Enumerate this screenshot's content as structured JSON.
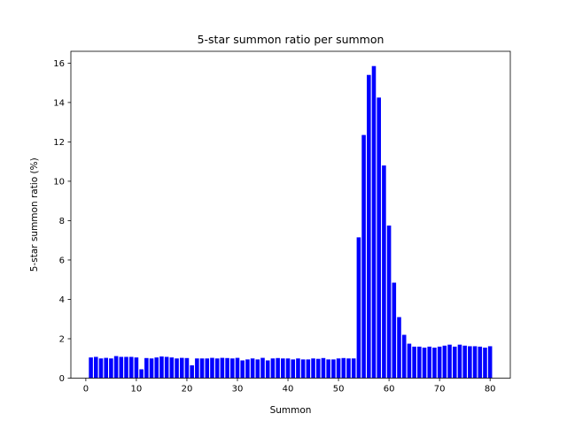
{
  "chart_data": {
    "type": "bar",
    "title": "5-star summon ratio per summon",
    "xlabel": "Summon",
    "ylabel": "5-star summon ratio (%)",
    "xlim": [
      -2.96,
      84.0
    ],
    "ylim": [
      0,
      16.6
    ],
    "xticks": [
      0,
      10,
      20,
      30,
      40,
      50,
      60,
      70,
      80
    ],
    "yticks": [
      0,
      2,
      4,
      6,
      8,
      10,
      12,
      14,
      16
    ],
    "bar_color": "#0000ff",
    "grid": false,
    "x": [
      1,
      2,
      3,
      4,
      5,
      6,
      7,
      8,
      9,
      10,
      11,
      12,
      13,
      14,
      15,
      16,
      17,
      18,
      19,
      20,
      21,
      22,
      23,
      24,
      25,
      26,
      27,
      28,
      29,
      30,
      31,
      32,
      33,
      34,
      35,
      36,
      37,
      38,
      39,
      40,
      41,
      42,
      43,
      44,
      45,
      46,
      47,
      48,
      49,
      50,
      51,
      52,
      53,
      54,
      55,
      56,
      57,
      58,
      59,
      60,
      61,
      62,
      63,
      64,
      65,
      66,
      67,
      68,
      69,
      70,
      71,
      72,
      73,
      74,
      75,
      76,
      77,
      78,
      79,
      80
    ],
    "values": [
      1.05,
      1.08,
      1.0,
      1.03,
      1.0,
      1.12,
      1.08,
      1.08,
      1.08,
      1.05,
      0.45,
      1.02,
      1.0,
      1.05,
      1.1,
      1.08,
      1.05,
      1.0,
      1.03,
      1.02,
      0.65,
      1.0,
      1.0,
      1.0,
      1.03,
      1.0,
      1.03,
      1.02,
      1.0,
      1.03,
      0.9,
      0.95,
      1.0,
      0.95,
      1.03,
      0.9,
      1.0,
      1.02,
      1.0,
      1.0,
      0.95,
      1.0,
      0.95,
      0.95,
      1.0,
      0.98,
      1.02,
      0.95,
      0.95,
      1.0,
      1.02,
      1.0,
      1.0,
      7.15,
      12.35,
      15.4,
      15.85,
      14.25,
      10.8,
      7.75,
      4.85,
      3.1,
      2.2,
      1.75,
      1.6,
      1.6,
      1.55,
      1.6,
      1.55,
      1.6,
      1.65,
      1.7,
      1.6,
      1.7,
      1.65,
      1.62,
      1.62,
      1.6,
      1.55,
      1.62
    ]
  }
}
